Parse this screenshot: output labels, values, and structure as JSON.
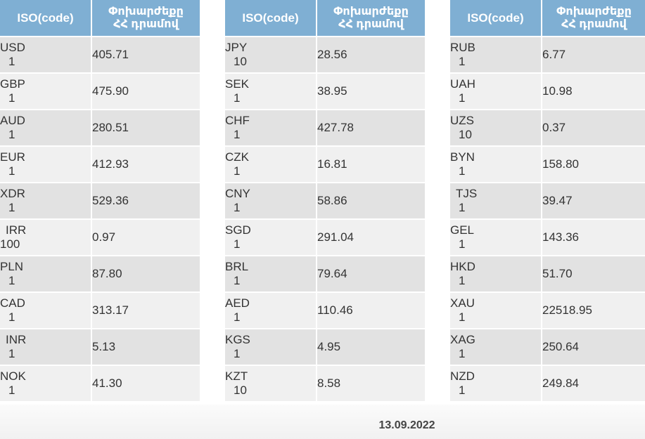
{
  "headers": {
    "iso": "ISO(code)",
    "rate_line1": "Փոխարժեքը",
    "rate_line2": "ՀՀ դրամով"
  },
  "tables": [
    {
      "rows": [
        {
          "code": "USD",
          "unit": "1",
          "rate": "405.71"
        },
        {
          "code": "GBP",
          "unit": "1",
          "rate": "475.90"
        },
        {
          "code": "AUD",
          "unit": "1",
          "rate": "280.51"
        },
        {
          "code": "EUR",
          "unit": "1",
          "rate": "412.93"
        },
        {
          "code": "XDR",
          "unit": "1",
          "rate": "529.36"
        },
        {
          "code": "IRR",
          "unit": "100",
          "rate": "0.97"
        },
        {
          "code": "PLN",
          "unit": "1",
          "rate": "87.80"
        },
        {
          "code": "CAD",
          "unit": "1",
          "rate": "313.17"
        },
        {
          "code": "INR",
          "unit": "1",
          "rate": "5.13"
        },
        {
          "code": "NOK",
          "unit": "1",
          "rate": "41.30"
        }
      ]
    },
    {
      "rows": [
        {
          "code": "JPY",
          "unit": "10",
          "rate": "28.56"
        },
        {
          "code": "SEK",
          "unit": "1",
          "rate": "38.95"
        },
        {
          "code": "CHF",
          "unit": "1",
          "rate": "427.78"
        },
        {
          "code": "CZK",
          "unit": "1",
          "rate": "16.81"
        },
        {
          "code": "CNY",
          "unit": "1",
          "rate": "58.86"
        },
        {
          "code": "SGD",
          "unit": "1",
          "rate": "291.04"
        },
        {
          "code": "BRL",
          "unit": "1",
          "rate": "79.64"
        },
        {
          "code": "AED",
          "unit": "1",
          "rate": "110.46"
        },
        {
          "code": "KGS",
          "unit": "1",
          "rate": "4.95"
        },
        {
          "code": "KZT",
          "unit": "10",
          "rate": "8.58"
        }
      ]
    },
    {
      "rows": [
        {
          "code": "RUB",
          "unit": "1",
          "rate": "6.77"
        },
        {
          "code": "UAH",
          "unit": "1",
          "rate": "10.98"
        },
        {
          "code": "UZS",
          "unit": "10",
          "rate": "0.37"
        },
        {
          "code": "BYN",
          "unit": "1",
          "rate": "158.80"
        },
        {
          "code": "TJS",
          "unit": "1",
          "rate": "39.47"
        },
        {
          "code": "GEL",
          "unit": "1",
          "rate": "143.36"
        },
        {
          "code": "HKD",
          "unit": "1",
          "rate": "51.70"
        },
        {
          "code": "XAU",
          "unit": "1",
          "rate": "22518.95"
        },
        {
          "code": "XAG",
          "unit": "1",
          "rate": "250.64"
        },
        {
          "code": "NZD",
          "unit": "1",
          "rate": "249.84"
        }
      ]
    }
  ],
  "date": "13.09.2022",
  "colors": {
    "header_bg": "#7fafd3",
    "row_dark": "#e2e2e2",
    "row_light": "#f0f0f0"
  }
}
